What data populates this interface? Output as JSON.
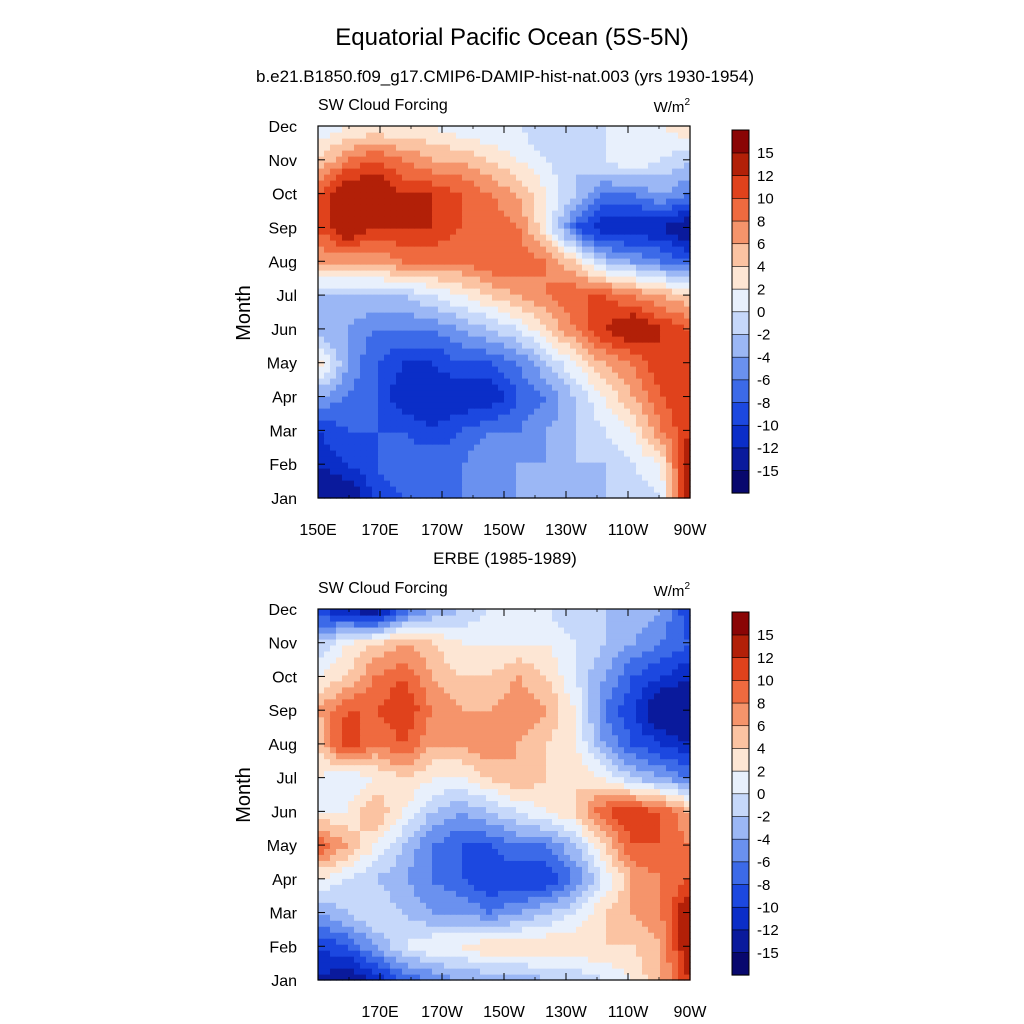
{
  "figure": {
    "title": "Equatorial Pacific Ocean (5S-5N)"
  },
  "chart_data": [
    {
      "type": "heatmap",
      "title": "b.e21.B1850.f09_g17.CMIP6-DAMIP-hist-nat.003 (yrs 1930-1954)",
      "left_label": "SW Cloud Forcing",
      "units": "W/m",
      "units_sup": "2",
      "ylabel": "Month",
      "xlabel": "",
      "y_ticks": [
        "Jan",
        "Feb",
        "Mar",
        "Apr",
        "May",
        "Jun",
        "Jul",
        "Aug",
        "Sep",
        "Oct",
        "Nov",
        "Dec"
      ],
      "x_ticks": [
        "150E",
        "170E",
        "170W",
        "150W",
        "130W",
        "110W",
        "90W"
      ],
      "x_range": [
        150,
        270
      ],
      "levels": [
        -15,
        -12,
        -10,
        -8,
        -6,
        -4,
        -2,
        0,
        2,
        4,
        6,
        8,
        10,
        12,
        15
      ],
      "colorbar_labels": [
        "15",
        "12",
        "10",
        "8",
        "6",
        "4",
        "2",
        "0",
        "-2",
        "-4",
        "-6",
        "-8",
        "-10",
        "-12",
        "-15"
      ],
      "colors": [
        "#08086e",
        "#0a1a9c",
        "#0b2ec8",
        "#1c48e0",
        "#3c6ae8",
        "#6a91ef",
        "#9bb7f5",
        "#c6d8fa",
        "#e8f0fc",
        "#fde6d4",
        "#fbc3a2",
        "#f5946b",
        "#ef6a3f",
        "#e0421c",
        "#b22008",
        "#8a0505"
      ],
      "value_grid": [
        [
          -15,
          -15,
          -10,
          -8,
          -8,
          -6,
          -6,
          -4,
          -4,
          -4,
          -2,
          -2,
          0,
          15
        ],
        [
          -12,
          -10,
          -8,
          -6,
          -6,
          -6,
          -4,
          -4,
          -4,
          -2,
          -2,
          0,
          2,
          15
        ],
        [
          -10,
          -8,
          -8,
          -8,
          -10,
          -8,
          -6,
          -6,
          -4,
          -2,
          0,
          2,
          8,
          12
        ],
        [
          -4,
          -6,
          -8,
          -12,
          -12,
          -12,
          -12,
          -8,
          -6,
          -2,
          2,
          6,
          10,
          12
        ],
        [
          4,
          -4,
          -8,
          -10,
          -10,
          -8,
          -8,
          -6,
          -2,
          2,
          6,
          8,
          12,
          12
        ],
        [
          -4,
          -4,
          -6,
          -6,
          -6,
          -4,
          -2,
          0,
          4,
          8,
          12,
          15,
          12,
          10
        ],
        [
          -2,
          -2,
          -2,
          -2,
          0,
          2,
          4,
          6,
          8,
          10,
          10,
          8,
          6,
          4
        ],
        [
          6,
          6,
          6,
          8,
          8,
          8,
          10,
          10,
          8,
          4,
          -2,
          -4,
          -6,
          -8
        ],
        [
          10,
          15,
          12,
          12,
          12,
          10,
          10,
          8,
          2,
          -8,
          -12,
          -12,
          -12,
          -15
        ],
        [
          10,
          15,
          15,
          12,
          12,
          10,
          8,
          6,
          2,
          -2,
          -6,
          -6,
          -4,
          -6
        ],
        [
          4,
          8,
          10,
          8,
          6,
          6,
          4,
          2,
          0,
          -2,
          0,
          2,
          0,
          -2
        ],
        [
          0,
          2,
          2,
          2,
          2,
          0,
          0,
          0,
          -2,
          -2,
          0,
          2,
          2,
          4
        ]
      ]
    },
    {
      "type": "heatmap",
      "title": "ERBE (1985-1989)",
      "left_label": "SW Cloud Forcing",
      "units": "W/m",
      "units_sup": "2",
      "ylabel": "Month",
      "xlabel": "",
      "y_ticks": [
        "Jan",
        "Feb",
        "Mar",
        "Apr",
        "May",
        "Jun",
        "Jul",
        "Aug",
        "Sep",
        "Oct",
        "Nov",
        "Dec"
      ],
      "x_ticks": [
        "170E",
        "170W",
        "150W",
        "130W",
        "110W",
        "90W"
      ],
      "x_range": [
        150,
        270
      ],
      "levels": [
        -15,
        -12,
        -10,
        -8,
        -6,
        -4,
        -2,
        0,
        2,
        4,
        6,
        8,
        10,
        12,
        15
      ],
      "colorbar_labels": [
        "15",
        "12",
        "10",
        "8",
        "6",
        "4",
        "2",
        "0",
        "-2",
        "-4",
        "-6",
        "-8",
        "-10",
        "-12",
        "-15"
      ],
      "colors": [
        "#08086e",
        "#0a1a9c",
        "#0b2ec8",
        "#1c48e0",
        "#3c6ae8",
        "#6a91ef",
        "#9bb7f5",
        "#c6d8fa",
        "#e8f0fc",
        "#fde6d4",
        "#fbc3a2",
        "#f5946b",
        "#ef6a3f",
        "#e0421c",
        "#b22008",
        "#8a0505"
      ],
      "value_grid": [
        [
          -12,
          -15,
          -12,
          -8,
          -6,
          -4,
          -4,
          -4,
          -2,
          -2,
          0,
          2,
          6,
          12
        ],
        [
          -10,
          -8,
          -4,
          0,
          2,
          2,
          4,
          4,
          4,
          4,
          4,
          4,
          6,
          15
        ],
        [
          -4,
          -2,
          0,
          -2,
          -4,
          -4,
          -6,
          -4,
          -2,
          0,
          4,
          6,
          8,
          15
        ],
        [
          2,
          0,
          -2,
          -4,
          -6,
          -8,
          -10,
          -10,
          -10,
          -6,
          0,
          6,
          8,
          10
        ],
        [
          10,
          6,
          2,
          -2,
          -6,
          -8,
          -8,
          -6,
          -6,
          -2,
          4,
          10,
          10,
          8
        ],
        [
          2,
          2,
          6,
          2,
          -2,
          -4,
          -2,
          0,
          2,
          4,
          10,
          12,
          10,
          6
        ],
        [
          2,
          0,
          2,
          4,
          2,
          2,
          4,
          6,
          4,
          4,
          2,
          -2,
          -4,
          -6
        ],
        [
          4,
          12,
          8,
          10,
          6,
          6,
          8,
          6,
          4,
          2,
          -4,
          -8,
          -10,
          -12
        ],
        [
          6,
          10,
          10,
          12,
          8,
          6,
          6,
          8,
          6,
          2,
          -6,
          -10,
          -15,
          -15
        ],
        [
          2,
          4,
          8,
          10,
          6,
          4,
          4,
          6,
          4,
          0,
          -4,
          -8,
          -10,
          -12
        ],
        [
          -2,
          2,
          4,
          6,
          4,
          2,
          2,
          2,
          2,
          0,
          -2,
          -4,
          -6,
          -8
        ],
        [
          -10,
          -12,
          -15,
          -8,
          -4,
          -2,
          0,
          0,
          0,
          -2,
          -2,
          -2,
          -4,
          -10
        ]
      ]
    }
  ]
}
